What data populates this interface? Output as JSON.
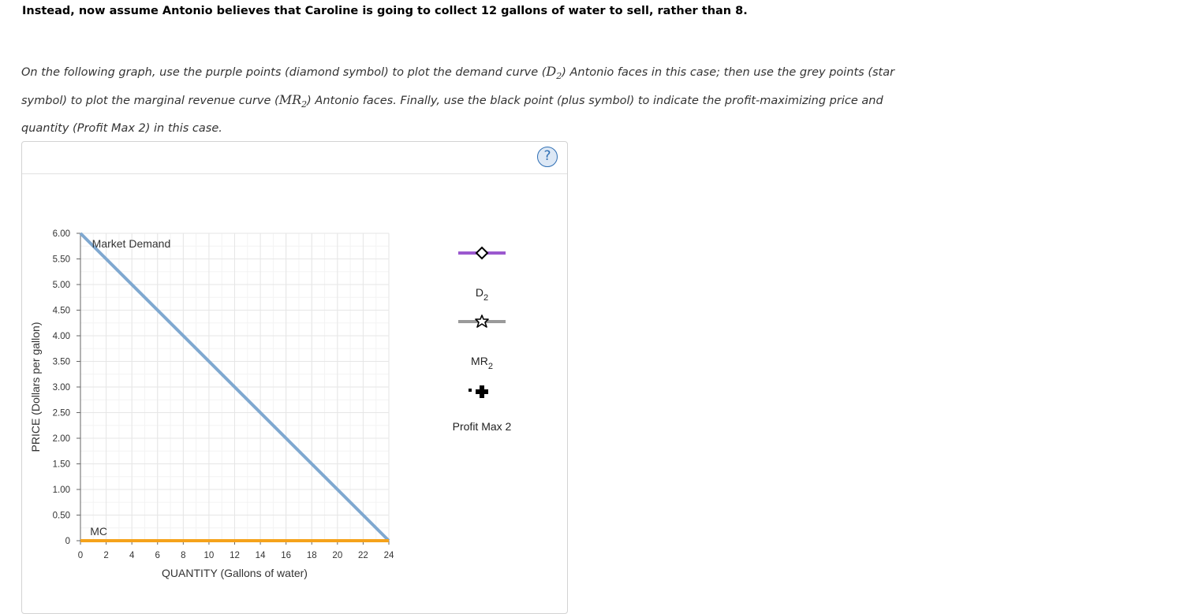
{
  "heading": "Instead, now assume Antonio believes that Caroline is going to collect 12 gallons of water to sell, rather than 8.",
  "instructions": {
    "part1": "On the following graph, use the purple points (diamond symbol) to plot the demand curve (",
    "d2_base": "D",
    "d2_sub": "2",
    "part2": ") Antonio faces in this case; then use the grey points (star symbol) to plot the marginal revenue curve (",
    "mr2_base": "MR",
    "mr2_sub": "2",
    "part3": ") Antonio faces. Finally, use the black point (plus symbol) to indicate the profit-maximizing price and quantity (Profit Max 2) in this case."
  },
  "help_label": "?",
  "palette": {
    "d2": {
      "base": "D",
      "sub": "2",
      "color": "#9b59cf",
      "symbol": "diamond-icon"
    },
    "mr2": {
      "base": "MR",
      "sub": "2",
      "color": "#9a9a9a",
      "symbol": "star-icon"
    },
    "profit_max": {
      "label": "Profit Max 2",
      "color": "#000000",
      "symbol": "plus-icon"
    }
  },
  "chart_data": {
    "type": "line",
    "xlabel": "QUANTITY (Gallons of water)",
    "ylabel": "PRICE (Dollars per gallon)",
    "xlim": [
      0,
      24
    ],
    "ylim": [
      0,
      6
    ],
    "x_ticks": [
      0,
      2,
      4,
      6,
      8,
      10,
      12,
      14,
      16,
      18,
      20,
      22,
      24
    ],
    "y_ticks": [
      0,
      0.5,
      1,
      1.5,
      2,
      2.5,
      3,
      3.5,
      4,
      4.5,
      5,
      5.5,
      6
    ],
    "y_tick_labels": [
      "0",
      "0.50",
      "1.00",
      "1.50",
      "2.00",
      "2.50",
      "3.00",
      "3.50",
      "4.00",
      "4.50",
      "5.00",
      "5.50",
      "6.00"
    ],
    "grid": true,
    "series": [
      {
        "name": "Market Demand",
        "color": "#7fa8d0",
        "points": [
          [
            0,
            6
          ],
          [
            24,
            0
          ]
        ]
      },
      {
        "name": "MC",
        "color": "#f5a21b",
        "points": [
          [
            0,
            0
          ],
          [
            24,
            0
          ]
        ]
      }
    ]
  }
}
